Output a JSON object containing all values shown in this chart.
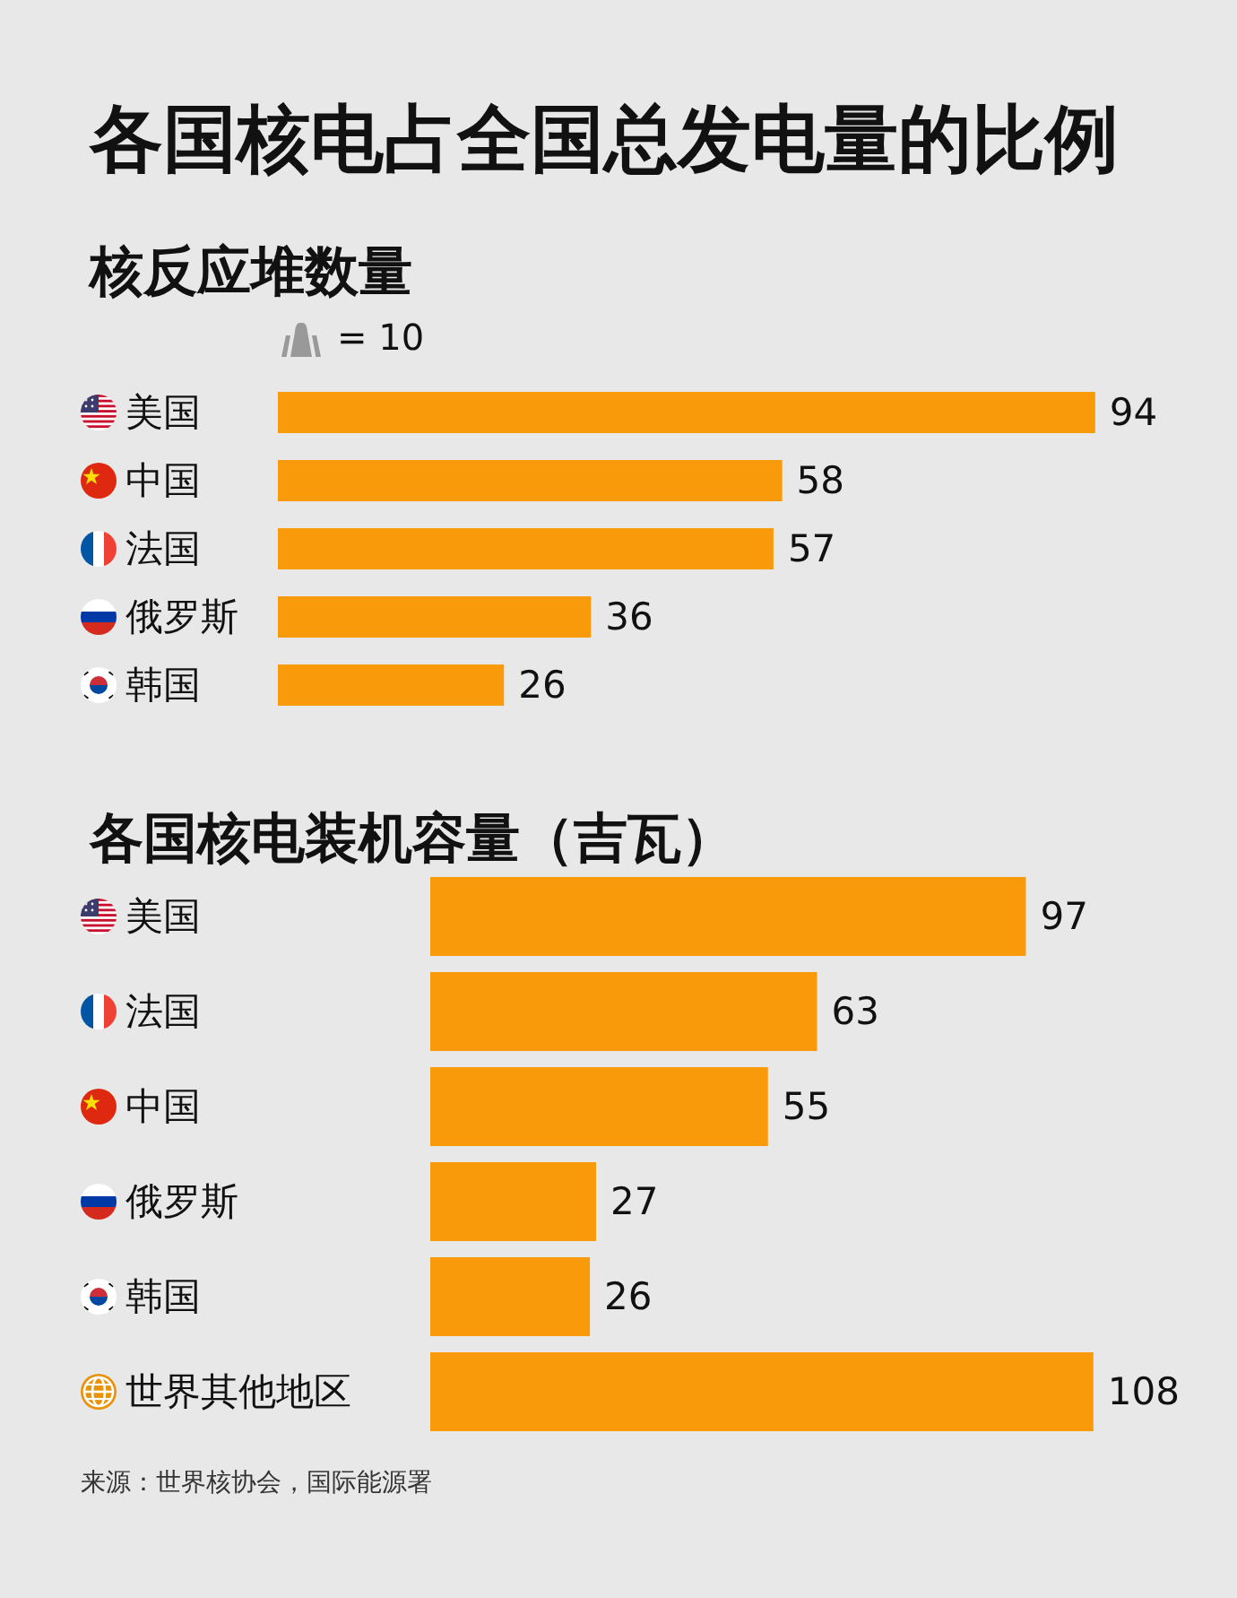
{
  "chart_data": [
    {
      "type": "bar",
      "title": "各国核电占全国总发电量的比例",
      "subtitle": "核反应堆数量",
      "orientation": "horizontal",
      "categories": [
        "美国",
        "中国",
        "法国",
        "俄罗斯",
        "韩国"
      ],
      "values": [
        94,
        58,
        57,
        36,
        26
      ],
      "color": "#f99a0a",
      "data_labels": true,
      "annotations": [
        "= 10"
      ],
      "tick_labels": "y",
      "grid": false
    },
    {
      "type": "bar",
      "title": "各国核电装机容量（吉瓦）",
      "orientation": "horizontal",
      "categories": [
        "美国",
        "法国",
        "中国",
        "俄罗斯",
        "韩国",
        "世界其他地区"
      ],
      "values": [
        97,
        63,
        55,
        27,
        26,
        108
      ],
      "color": "#f99a0a",
      "data_labels": true,
      "annotations": [
        "来源：世界核协会，国际能源署"
      ],
      "tick_labels": "y",
      "grid": false
    }
  ]
}
